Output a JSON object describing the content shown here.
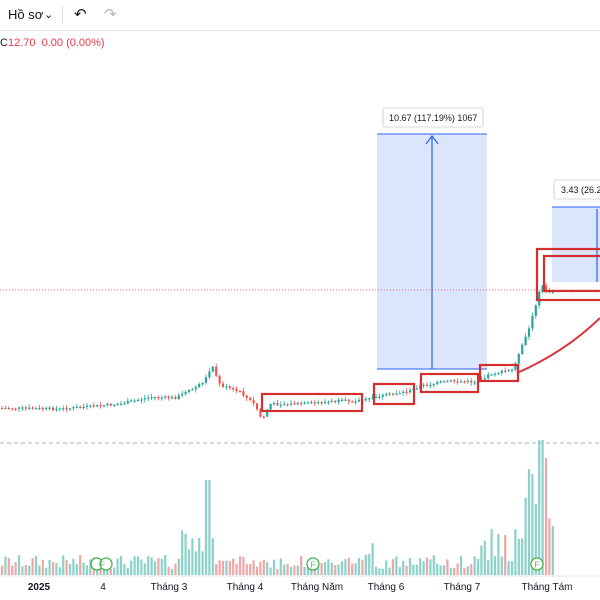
{
  "toolbar": {
    "profile_label": "Hồ sơ",
    "dropdown_icon": "chevron-down-icon",
    "undo_icon": "undo-icon",
    "redo_icon": "redo-icon"
  },
  "legend": {
    "prefix": "C",
    "close": "12.70",
    "change": "0.00 (0.00%)",
    "color": "#f23645"
  },
  "colors": {
    "up": "#26a69a",
    "down": "#ef5350",
    "volume_up": "#8ad1c8",
    "volume_down": "#f0a6a6",
    "highlight_box": "#d32f2f",
    "measure": "#2962ff",
    "trend_curve": "#d9363e"
  },
  "chart_data": {
    "type": "candlestick",
    "x_ticks": [
      "2025",
      "4",
      "Tháng 3",
      "Tháng 4",
      "Tháng Năm",
      "Tháng 6",
      "Tháng 7",
      "Tháng Tám"
    ],
    "event_markers": [
      "F",
      "F",
      "F"
    ],
    "annotations": [
      {
        "type": "measure",
        "label": "10.67 (117.19%) 1067"
      },
      {
        "type": "measure",
        "label": "3.43 (26.2"
      }
    ],
    "highlight_boxes": 6,
    "trend_curve": true,
    "grid": false,
    "price_line": "dotted",
    "close": 12.7
  }
}
